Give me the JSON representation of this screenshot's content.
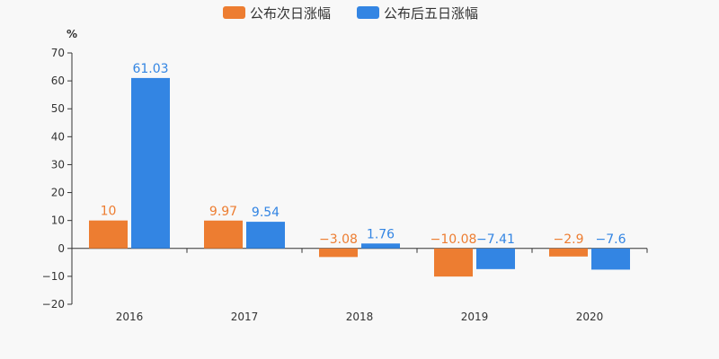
{
  "chart_data": {
    "type": "bar",
    "categories": [
      "2016",
      "2017",
      "2018",
      "2019",
      "2020"
    ],
    "series": [
      {
        "name": "公布次日涨幅",
        "values": [
          10,
          9.97,
          -3.08,
          -10.08,
          -2.9
        ],
        "labels": [
          "10",
          "9.97",
          "−3.08",
          "−10.08",
          "−2.9"
        ],
        "color": "#ed7d31"
      },
      {
        "name": "公布后五日涨幅",
        "values": [
          61.03,
          9.54,
          1.76,
          -7.41,
          -7.6
        ],
        "labels": [
          "61.03",
          "9.54",
          "1.76",
          "−7.41",
          "−7.6"
        ],
        "color": "#3385e3"
      }
    ],
    "ylabel": "%",
    "ylim": [
      -20,
      70
    ],
    "yticks": [
      -20,
      -10,
      0,
      10,
      20,
      30,
      40,
      50,
      60,
      70
    ],
    "ytick_labels": [
      "−20",
      "−10",
      "0",
      "10",
      "20",
      "30",
      "40",
      "50",
      "60",
      "70"
    ],
    "grid": false,
    "legend_position": "top-center"
  }
}
